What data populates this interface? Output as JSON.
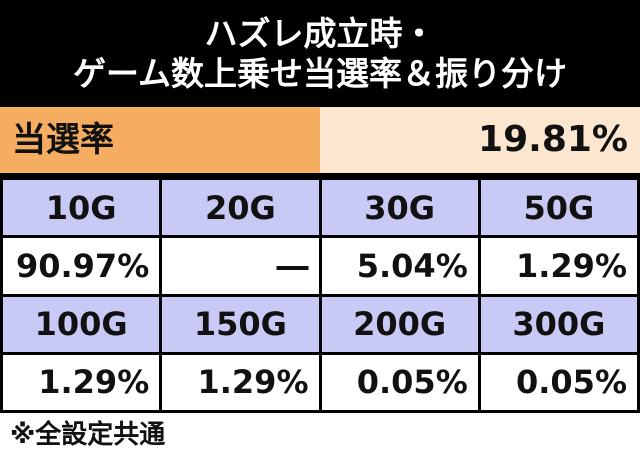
{
  "header": {
    "title_lines": [
      "ハズレ成立時・",
      "ゲーム数上乗せ当選率＆振り分け"
    ]
  },
  "rate": {
    "label": "当選率",
    "value": "19.81%"
  },
  "table": {
    "rows": [
      [
        "10G",
        "20G",
        "30G",
        "50G"
      ],
      [
        "90.97%",
        "―",
        "5.04%",
        "1.29%"
      ],
      [
        "100G",
        "150G",
        "200G",
        "300G"
      ],
      [
        "1.29%",
        "1.29%",
        "0.05%",
        "0.05%"
      ]
    ]
  },
  "footer": {
    "note": "※全設定共通"
  }
}
